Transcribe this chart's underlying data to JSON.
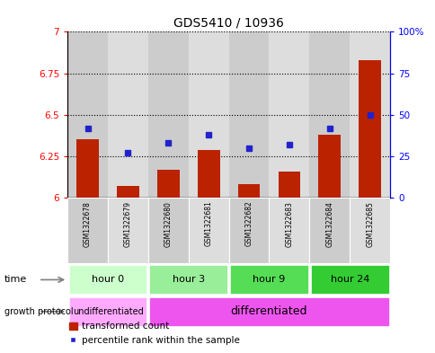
{
  "title": "GDS5410 / 10936",
  "samples": [
    "GSM1322678",
    "GSM1322679",
    "GSM1322680",
    "GSM1322681",
    "GSM1322682",
    "GSM1322683",
    "GSM1322684",
    "GSM1322685"
  ],
  "transformed_count": [
    6.35,
    6.07,
    6.17,
    6.29,
    6.08,
    6.16,
    6.38,
    6.83
  ],
  "percentile_rank": [
    42,
    27,
    33,
    38,
    30,
    32,
    42,
    50
  ],
  "ylim_left": [
    6.0,
    7.0
  ],
  "ylim_right": [
    0,
    100
  ],
  "yticks_left": [
    6.0,
    6.25,
    6.5,
    6.75,
    7.0
  ],
  "ytick_labels_left": [
    "6",
    "6.25",
    "6.5",
    "6.75",
    "7"
  ],
  "yticks_right": [
    0,
    25,
    50,
    75,
    100
  ],
  "ytick_labels_right": [
    "0",
    "25",
    "50",
    "75",
    "100%"
  ],
  "bar_color": "#bb2200",
  "dot_color": "#2222cc",
  "time_groups": [
    {
      "label": "hour 0",
      "start": 0,
      "end": 2,
      "color": "#ccffcc"
    },
    {
      "label": "hour 3",
      "start": 2,
      "end": 4,
      "color": "#99ee99"
    },
    {
      "label": "hour 9",
      "start": 4,
      "end": 6,
      "color": "#55dd55"
    },
    {
      "label": "hour 24",
      "start": 6,
      "end": 8,
      "color": "#33cc33"
    }
  ],
  "growth_protocol_groups": [
    {
      "label": "undifferentiated",
      "start": 0,
      "end": 2,
      "color": "#ffaaff"
    },
    {
      "label": "differentiated",
      "start": 2,
      "end": 8,
      "color": "#ee55ee"
    }
  ],
  "legend_bar_label": "transformed count",
  "legend_dot_label": "percentile rank within the sample",
  "base_value": 6.0,
  "col_colors": [
    "#cccccc",
    "#dddddd",
    "#cccccc",
    "#dddddd",
    "#cccccc",
    "#dddddd",
    "#cccccc",
    "#dddddd"
  ]
}
